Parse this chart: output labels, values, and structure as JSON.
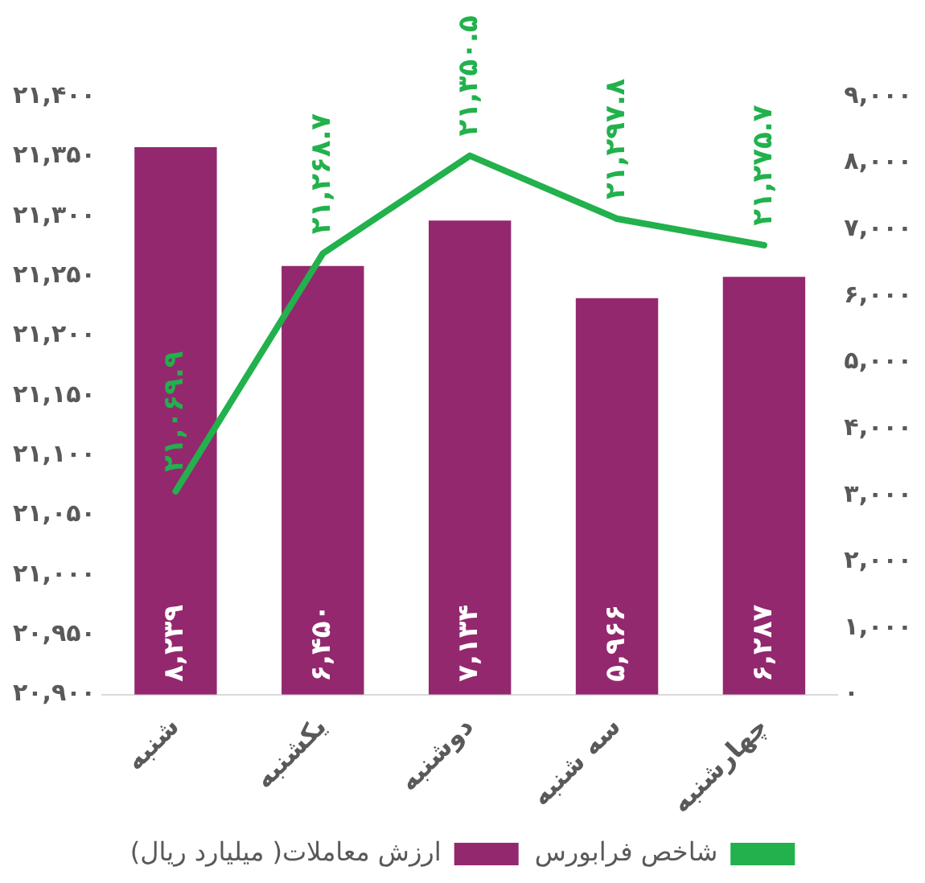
{
  "chart_data": {
    "type": "bar",
    "categories": [
      "شنبه",
      "یکشنبه",
      "دوشنبه",
      "سه شنبه",
      "چهارشنبه"
    ],
    "series": [
      {
        "name": "ارزش معاملات( میلیارد ریال)",
        "axis": "y2",
        "color": "#93286f",
        "values": [
          8239,
          6450,
          7134,
          5966,
          6287
        ],
        "value_labels": [
          "۸,۲۳۹",
          "۶,۴۵۰",
          "۷,۱۳۴",
          "۵,۹۶۶",
          "۶,۲۸۷"
        ]
      },
      {
        "name": "شاخص فرابورس",
        "type": "line",
        "axis": "y",
        "color": "#22b14c",
        "values": [
          21069.9,
          21268.7,
          21350.5,
          21297.8,
          21275.7
        ],
        "value_labels": [
          "۲۱,۰۶۹.۹",
          "۲۱,۲۶۸.۷",
          "۲۱,۳۵۰.۵",
          "۲۱,۲۹۷.۸",
          "۲۱,۲۷۵.۷"
        ]
      }
    ],
    "ylim": [
      20900,
      21400
    ],
    "yticks": [
      {
        "value": 20900,
        "label": "۲۰,۹۰۰"
      },
      {
        "value": 20950,
        "label": "۲۰,۹۵۰"
      },
      {
        "value": 21000,
        "label": "۲۱,۰۰۰"
      },
      {
        "value": 21050,
        "label": "۲۱,۰۵۰"
      },
      {
        "value": 21100,
        "label": "۲۱,۱۰۰"
      },
      {
        "value": 21150,
        "label": "۲۱,۱۵۰"
      },
      {
        "value": 21200,
        "label": "۲۱,۲۰۰"
      },
      {
        "value": 21250,
        "label": "۲۱,۲۵۰"
      },
      {
        "value": 21300,
        "label": "۲۱,۳۰۰"
      },
      {
        "value": 21350,
        "label": "۲۱,۳۵۰"
      },
      {
        "value": 21400,
        "label": "۲۱,۴۰۰"
      }
    ],
    "y2lim": [
      0,
      9000
    ],
    "y2ticks": [
      {
        "value": 0,
        "label": "۰"
      },
      {
        "value": 1000,
        "label": "۱,۰۰۰"
      },
      {
        "value": 2000,
        "label": "۲,۰۰۰"
      },
      {
        "value": 3000,
        "label": "۳,۰۰۰"
      },
      {
        "value": 4000,
        "label": "۴,۰۰۰"
      },
      {
        "value": 5000,
        "label": "۵,۰۰۰"
      },
      {
        "value": 6000,
        "label": "۶,۰۰۰"
      },
      {
        "value": 7000,
        "label": "۷,۰۰۰"
      },
      {
        "value": 8000,
        "label": "۸,۰۰۰"
      },
      {
        "value": 9000,
        "label": "۹,۰۰۰"
      }
    ],
    "grid": false,
    "legend": "bottom",
    "marker": "none",
    "line_style": "solid"
  }
}
